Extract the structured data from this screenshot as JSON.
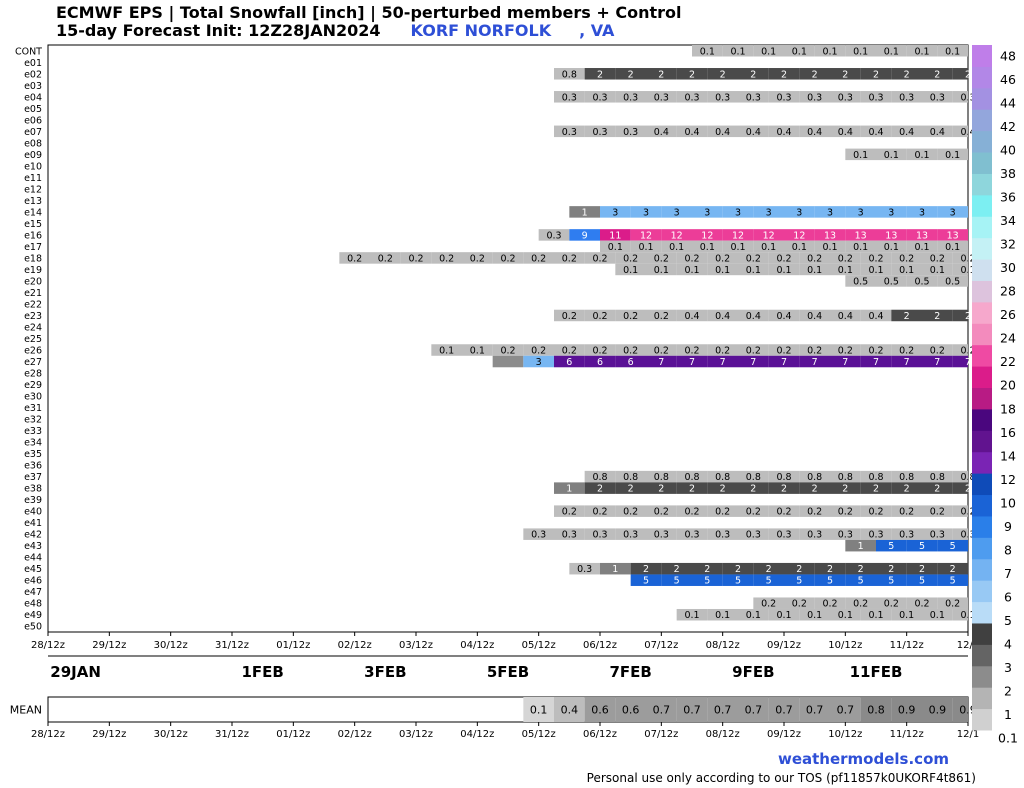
{
  "header": {
    "title_line1": "ECMWF EPS | Total Snowfall [inch] | 50-perturbed members + Control",
    "title_line2_prefix": "15-day Forecast Init: 12Z28JAN2024",
    "station": "KORF NORFOLK",
    "state": ", VA"
  },
  "footer": {
    "brand": "weathermodels.com",
    "tos": "Personal use only according to our TOS (pf11857k0UKORF4t861)"
  },
  "chart_data": {
    "type": "heatmap",
    "title": "ECMWF EPS | Total Snowfall [inch] | 50-perturbed members + Control",
    "x_time_labels": [
      "28/12z",
      "29/12z",
      "30/12z",
      "31/12z",
      "01/12z",
      "02/12z",
      "03/12z",
      "04/12z",
      "05/12z",
      "06/12z",
      "07/12z",
      "08/12z",
      "09/12z",
      "10/12z",
      "11/12z",
      "12/1"
    ],
    "date_labels": [
      {
        "label": "29JAN",
        "col": 0.9
      },
      {
        "label": "1FEB",
        "col": 7
      },
      {
        "label": "3FEB",
        "col": 11
      },
      {
        "label": "5FEB",
        "col": 15
      },
      {
        "label": "7FEB",
        "col": 19
      },
      {
        "label": "9FEB",
        "col": 23
      },
      {
        "label": "11FEB",
        "col": 27
      }
    ],
    "members": [
      "CONT",
      "e01",
      "e02",
      "e03",
      "e04",
      "e05",
      "e06",
      "e07",
      "e08",
      "e09",
      "e10",
      "e11",
      "e12",
      "e13",
      "e14",
      "e15",
      "e16",
      "e17",
      "e18",
      "e19",
      "e20",
      "e21",
      "e22",
      "e23",
      "e24",
      "e25",
      "e26",
      "e27",
      "e28",
      "e29",
      "e30",
      "e31",
      "e32",
      "e33",
      "e34",
      "e35",
      "e36",
      "e37",
      "e38",
      "e39",
      "e40",
      "e41",
      "e42",
      "e43",
      "e44",
      "e45",
      "e46",
      "e47",
      "e48",
      "e49",
      "e50"
    ],
    "rows": [
      {
        "m": "CONT",
        "start": 21,
        "vals": [
          "0.1",
          "0.1",
          "0.1",
          "0.1",
          "0.1",
          "0.1",
          "0.1",
          "0.1",
          "0.1",
          "0.1"
        ]
      },
      {
        "m": "e02",
        "start": 16.5,
        "vals": [
          "0.8",
          "2",
          "2",
          "2",
          "2",
          "2",
          "2",
          "2",
          "2",
          "2",
          "2",
          "2",
          "2",
          "2"
        ]
      },
      {
        "m": "e04",
        "start": 16.5,
        "vals": [
          "0.3",
          "0.3",
          "0.3",
          "0.3",
          "0.3",
          "0.3",
          "0.3",
          "0.3",
          "0.3",
          "0.3",
          "0.3",
          "0.3",
          "0.3",
          "0.3"
        ]
      },
      {
        "m": "e07",
        "start": 16.5,
        "vals": [
          "0.3",
          "0.3",
          "0.3",
          "0.4",
          "0.4",
          "0.4",
          "0.4",
          "0.4",
          "0.4",
          "0.4",
          "0.4",
          "0.4",
          "0.4",
          "0.4"
        ]
      },
      {
        "m": "e09",
        "start": 26,
        "vals": [
          "0.1",
          "0.1",
          "0.1",
          "0.1",
          "0.1"
        ]
      },
      {
        "m": "e14",
        "start": 17,
        "vals": [
          "1",
          "3",
          "3",
          "3",
          "3",
          "3",
          "3",
          "3",
          "3",
          "3",
          "3",
          "3",
          "3",
          "3"
        ]
      },
      {
        "m": "e16",
        "start": 16,
        "vals": [
          "0.3",
          "9",
          "11",
          "12",
          "12",
          "12",
          "12",
          "12",
          "12",
          "13",
          "13",
          "13",
          "13",
          "13",
          "1"
        ]
      },
      {
        "m": "e17",
        "start": 18,
        "vals": [
          "0.1",
          "0.1",
          "0.1",
          "0.1",
          "0.1",
          "0.1",
          "0.1",
          "0.1",
          "0.1",
          "0.1",
          "0.1",
          "0.1"
        ]
      },
      {
        "m": "e18",
        "start": 9.5,
        "vals": [
          "0.2",
          "0.2",
          "0.2",
          "0.2",
          "0.2",
          "0.2",
          "0.2",
          "0.2",
          "0.2",
          "0.2",
          "0.2",
          "0.2",
          "0.2",
          "0.2",
          "0.2",
          "0.2",
          "0.2",
          "0.2",
          "0.2",
          "0.2",
          "0.2",
          "0.2"
        ]
      },
      {
        "m": "e19",
        "start": 18.5,
        "vals": [
          "0.1",
          "0.1",
          "0.1",
          "0.1",
          "0.1",
          "0.1",
          "0.1",
          "0.1",
          "0.1",
          "0.1",
          "0.1",
          "0.1"
        ]
      },
      {
        "m": "e20",
        "start": 26,
        "vals": [
          "0.5",
          "0.5",
          "0.5",
          "0.5"
        ]
      },
      {
        "m": "e23",
        "start": 16.5,
        "vals": [
          "0.2",
          "0.2",
          "0.2",
          "0.2",
          "0.4",
          "0.4",
          "0.4",
          "0.4",
          "0.4",
          "0.4",
          "0.4",
          "2",
          "2",
          "2"
        ]
      },
      {
        "m": "e26",
        "start": 12.5,
        "vals": [
          "0.1",
          "0.1",
          "0.2",
          "0.2",
          "0.2",
          "0.2",
          "0.2",
          "0.2",
          "0.2",
          "0.2",
          "0.2",
          "0.2",
          "0.2",
          "0.2",
          "0.2",
          "0.2",
          "0.2",
          "0.2"
        ]
      },
      {
        "m": "e27",
        "start": 14.5,
        "vals": [
          "",
          "3",
          "6",
          "6",
          "6",
          "7",
          "7",
          "7",
          "7",
          "7",
          "7",
          "7",
          "7",
          "7",
          "7",
          "7",
          "7"
        ]
      },
      {
        "m": "e37",
        "start": 17.5,
        "vals": [
          "0.8",
          "0.8",
          "0.8",
          "0.8",
          "0.8",
          "0.8",
          "0.8",
          "0.8",
          "0.8",
          "0.8",
          "0.8",
          "0.8",
          "0.8"
        ]
      },
      {
        "m": "e38",
        "start": 16.5,
        "vals": [
          "1",
          "2",
          "2",
          "2",
          "2",
          "2",
          "2",
          "2",
          "2",
          "2",
          "2",
          "2",
          "2",
          "2"
        ]
      },
      {
        "m": "e40",
        "start": 16.5,
        "vals": [
          "0.2",
          "0.2",
          "0.2",
          "0.2",
          "0.2",
          "0.2",
          "0.2",
          "0.2",
          "0.2",
          "0.2",
          "0.2",
          "0.2",
          "0.2",
          "0.2"
        ]
      },
      {
        "m": "e42",
        "start": 15.5,
        "vals": [
          "0.3",
          "0.3",
          "0.3",
          "0.3",
          "0.3",
          "0.3",
          "0.3",
          "0.3",
          "0.3",
          "0.3",
          "0.3",
          "0.3",
          "0.3",
          "0.3",
          "0.3"
        ]
      },
      {
        "m": "e43",
        "start": 26,
        "vals": [
          "1",
          "5",
          "5",
          "5"
        ]
      },
      {
        "m": "e45",
        "start": 17,
        "vals": [
          "0.3",
          "1",
          "2",
          "2",
          "2",
          "2",
          "2",
          "2",
          "2",
          "2",
          "2",
          "2",
          "2",
          "2"
        ]
      },
      {
        "m": "e46",
        "start": 19,
        "vals": [
          "5",
          "5",
          "5",
          "5",
          "5",
          "5",
          "5",
          "5",
          "5",
          "5",
          "5",
          "5"
        ]
      },
      {
        "m": "e48",
        "start": 23,
        "vals": [
          "0.2",
          "0.2",
          "0.2",
          "0.2",
          "0.2",
          "0.2",
          "0.2",
          "0.2",
          "0.2",
          "0.2"
        ]
      },
      {
        "m": "e49",
        "start": 20.5,
        "vals": [
          "0.1",
          "0.1",
          "0.1",
          "0.1",
          "0.1",
          "0.1",
          "0.1",
          "0.1",
          "0.1",
          "0.1",
          "0.1",
          "0.1",
          "0.1",
          "0.1"
        ]
      }
    ],
    "mean": {
      "label": "MEAN",
      "start": 15.5,
      "vals": [
        "0.1",
        "0.4",
        "0.6",
        "0.6",
        "0.7",
        "0.7",
        "0.7",
        "0.7",
        "0.7",
        "0.7",
        "0.7",
        "0.8",
        "0.9",
        "0.9",
        "0.9"
      ]
    },
    "colorbar": {
      "labels": [
        "0.1",
        "1",
        "2",
        "3",
        "4",
        "5",
        "6",
        "7",
        "8",
        "9",
        "10",
        "12",
        "14",
        "16",
        "18",
        "20",
        "22",
        "24",
        "26",
        "28",
        "30",
        "32",
        "34",
        "36",
        "38",
        "40",
        "42",
        "44",
        "46",
        "48"
      ],
      "colors": [
        "#d0d0d0",
        "#b4b4b4",
        "#8c8c8c",
        "#646464",
        "#404040",
        "#b9dcf7",
        "#98c9f4",
        "#74b3f2",
        "#4e9cef",
        "#2a7fe9",
        "#1a63d6",
        "#0f4bb8",
        "#7a24b4",
        "#61138f",
        "#4a067e",
        "#b81b84",
        "#db1c8a",
        "#ef4aa3",
        "#f38bbd",
        "#f6a8cc",
        "#ddc3dd",
        "#cfe0ef",
        "#c4f1f5",
        "#a6f3f5",
        "#7ceff2",
        "#8ed6dc",
        "#80bfd0",
        "#86b0d6",
        "#93a6dc",
        "#a391e2",
        "#b287e7",
        "#bf7ee9"
      ]
    }
  }
}
